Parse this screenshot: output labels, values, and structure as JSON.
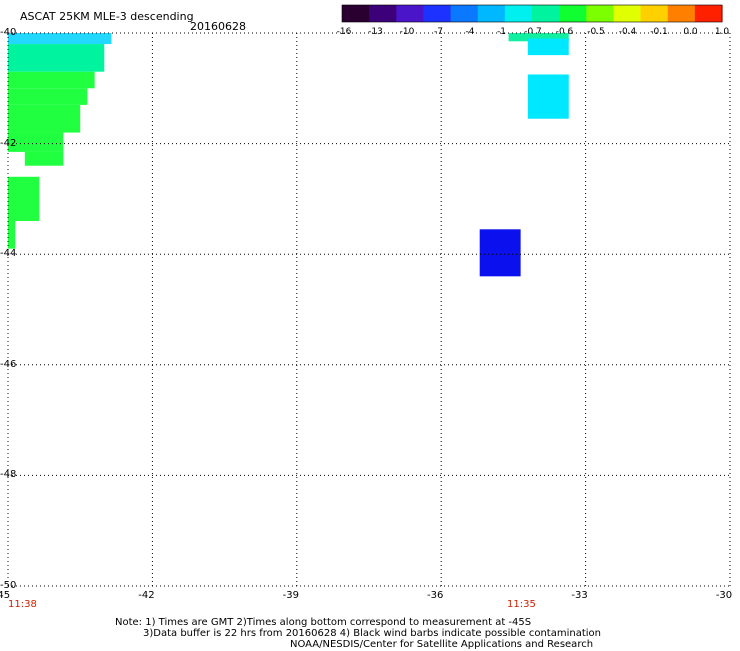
{
  "header": {
    "title": "ASCAT 25KM MLE-3 descending",
    "date": "20160628"
  },
  "colorbar": {
    "labels": [
      "-16",
      "-13",
      "-10",
      "-7",
      "-4",
      "-1",
      "-0.7",
      "-0.6",
      "-0.5",
      "-0.4",
      "-0.1",
      "0.0",
      "1.0"
    ],
    "colors": [
      "#2a0030",
      "#3c0078",
      "#4a14c8",
      "#1e32ff",
      "#0a78ff",
      "#00b8ff",
      "#00f0f0",
      "#00f4a0",
      "#10ff30",
      "#7cff00",
      "#e0ff00",
      "#ffd000",
      "#ff8000",
      "#ff2000"
    ]
  },
  "axes": {
    "x_ticks": [
      "-45",
      "-42",
      "-39",
      "-36",
      "-33",
      "-30"
    ],
    "y_ticks": [
      "-40",
      "-42",
      "-44",
      "-46",
      "-48",
      "-50"
    ]
  },
  "times": {
    "left": "11:38",
    "right": "11:35"
  },
  "cells": [
    {
      "lon_from": -45.0,
      "lon_to": -42.85,
      "lat_from": -40.0,
      "lat_to": -40.2,
      "color": "#22d8ff"
    },
    {
      "lon_from": -45.0,
      "lon_to": -43.0,
      "lat_from": -40.2,
      "lat_to": -40.7,
      "color": "#00f4a0"
    },
    {
      "lon_from": -45.0,
      "lon_to": -43.2,
      "lat_from": -40.7,
      "lat_to": -41.0,
      "color": "#20ff40"
    },
    {
      "lon_from": -45.0,
      "lon_to": -43.35,
      "lat_from": -41.0,
      "lat_to": -41.3,
      "color": "#20ff40"
    },
    {
      "lon_from": -45.0,
      "lon_to": -43.5,
      "lat_from": -41.3,
      "lat_to": -41.8,
      "color": "#20ff40"
    },
    {
      "lon_from": -45.0,
      "lon_to": -43.85,
      "lat_from": -41.8,
      "lat_to": -42.15,
      "color": "#20ff40"
    },
    {
      "lon_from": -44.65,
      "lon_to": -43.85,
      "lat_from": -42.15,
      "lat_to": -42.4,
      "color": "#20ff40"
    },
    {
      "lon_from": -45.0,
      "lon_to": -44.35,
      "lat_from": -42.6,
      "lat_to": -43.4,
      "color": "#20ff40"
    },
    {
      "lon_from": -45.0,
      "lon_to": -44.85,
      "lat_from": -43.4,
      "lat_to": -43.9,
      "color": "#20ff40"
    },
    {
      "lon_from": -34.6,
      "lon_to": -33.35,
      "lat_from": -40.0,
      "lat_to": -40.15,
      "color": "#10f0a0"
    },
    {
      "lon_from": -34.2,
      "lon_to": -33.35,
      "lat_from": -40.1,
      "lat_to": -40.4,
      "color": "#00e8ff"
    },
    {
      "lon_from": -34.2,
      "lon_to": -33.35,
      "lat_from": -40.75,
      "lat_to": -41.55,
      "color": "#00e8ff"
    },
    {
      "lon_from": -35.2,
      "lon_to": -34.35,
      "lat_from": -43.55,
      "lat_to": -44.4,
      "color": "#0a10ee"
    }
  ],
  "notes": [
    "Note: 1) Times are GMT 2)Times along bottom correspond to measurement at -45S",
    "3)Data buffer is 22 hrs from 20160628 4) Black wind barbs indicate possible contamination",
    "NOAA/NESDIS/Center for Satellite Applications and Research"
  ]
}
